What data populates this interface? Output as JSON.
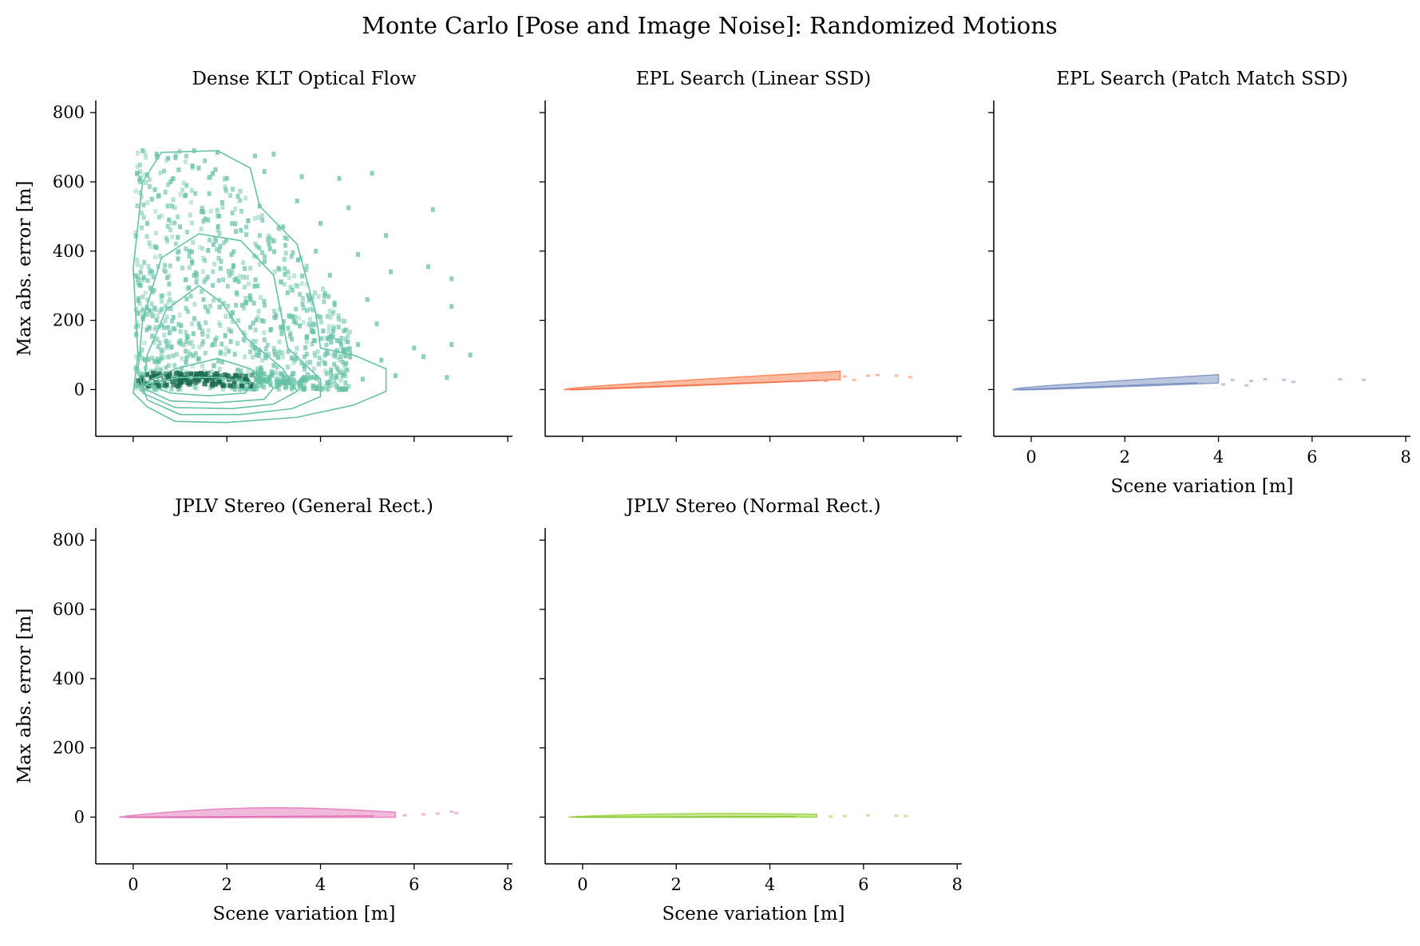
{
  "figure": {
    "title": "Monte Carlo [Pose and Image Noise]: Randomized Motions"
  },
  "chart_data": [
    {
      "type": "heatmap",
      "title": "Dense KLT Optical Flow",
      "xlabel": "",
      "ylabel": "Max abs. error [m]",
      "xlim": [
        -0.8,
        8.1
      ],
      "ylim": [
        -135,
        835
      ],
      "xticks": [
        0,
        2,
        4,
        6,
        8
      ],
      "yticks": [
        0,
        200,
        400,
        600,
        800
      ],
      "x_tick_labels_visible": false,
      "color": "#66c2a5",
      "dark_color": "#1b6b50",
      "scatter_points": [
        [
          0.2,
          690
        ],
        [
          0.5,
          680
        ],
        [
          0.9,
          670
        ],
        [
          1.3,
          690
        ],
        [
          1.8,
          685
        ],
        [
          2.6,
          675
        ],
        [
          3.0,
          680
        ],
        [
          0.3,
          620
        ],
        [
          0.8,
          600
        ],
        [
          1.4,
          640
        ],
        [
          2.0,
          610
        ],
        [
          2.8,
          630
        ],
        [
          3.6,
          615
        ],
        [
          4.4,
          610
        ],
        [
          5.1,
          625
        ],
        [
          0.4,
          550
        ],
        [
          1.1,
          560
        ],
        [
          1.9,
          540
        ],
        [
          2.7,
          530
        ],
        [
          3.5,
          545
        ],
        [
          4.6,
          525
        ],
        [
          0.3,
          480
        ],
        [
          1.0,
          470
        ],
        [
          1.6,
          490
        ],
        [
          2.3,
          460
        ],
        [
          3.2,
          470
        ],
        [
          4.0,
          480
        ],
        [
          5.4,
          445
        ],
        [
          6.4,
          520
        ],
        [
          0.5,
          410
        ],
        [
          1.2,
          400
        ],
        [
          2.1,
          390
        ],
        [
          2.9,
          420
        ],
        [
          3.9,
          400
        ],
        [
          4.8,
          390
        ],
        [
          0.4,
          340
        ],
        [
          1.3,
          330
        ],
        [
          2.2,
          320
        ],
        [
          3.1,
          350
        ],
        [
          4.2,
          330
        ],
        [
          5.5,
          340
        ],
        [
          6.3,
          355
        ],
        [
          6.8,
          320
        ],
        [
          0.6,
          270
        ],
        [
          1.5,
          260
        ],
        [
          2.4,
          250
        ],
        [
          3.3,
          280
        ],
        [
          4.3,
          250
        ],
        [
          5.0,
          260
        ],
        [
          0.5,
          200
        ],
        [
          1.4,
          190
        ],
        [
          2.5,
          180
        ],
        [
          3.4,
          210
        ],
        [
          4.5,
          170
        ],
        [
          5.2,
          190
        ],
        [
          6.8,
          240
        ],
        [
          0.7,
          140
        ],
        [
          1.7,
          130
        ],
        [
          2.6,
          120
        ],
        [
          3.7,
          150
        ],
        [
          4.8,
          130
        ],
        [
          6.0,
          120
        ],
        [
          6.8,
          130
        ],
        [
          0.6,
          90
        ],
        [
          1.9,
          80
        ],
        [
          3.0,
          70
        ],
        [
          4.1,
          100
        ],
        [
          5.3,
          85
        ],
        [
          6.2,
          95
        ],
        [
          7.2,
          100
        ],
        [
          0.8,
          40
        ],
        [
          1.6,
          30
        ],
        [
          2.7,
          25
        ],
        [
          3.8,
          35
        ],
        [
          4.9,
          30
        ],
        [
          5.6,
          40
        ],
        [
          6.7,
          35
        ]
      ],
      "contours": [
        {
          "level": "outer",
          "points": [
            [
              0.3,
              -50
            ],
            [
              0.9,
              -92
            ],
            [
              2.0,
              -95
            ],
            [
              3.5,
              -80
            ],
            [
              4.7,
              -45
            ],
            [
              5.4,
              -5
            ],
            [
              5.4,
              60
            ],
            [
              4.7,
              100
            ],
            [
              4.0,
              120
            ],
            [
              3.9,
              220
            ],
            [
              3.5,
              420
            ],
            [
              2.7,
              530
            ],
            [
              2.5,
              640
            ],
            [
              1.8,
              690
            ],
            [
              0.6,
              685
            ],
            [
              0.2,
              600
            ],
            [
              0.0,
              350
            ],
            [
              0.1,
              100
            ],
            [
              0.0,
              -10
            ],
            [
              0.3,
              -50
            ]
          ]
        },
        {
          "level": "2",
          "points": [
            [
              0.3,
              -30
            ],
            [
              1.0,
              -72
            ],
            [
              2.3,
              -72
            ],
            [
              3.4,
              -55
            ],
            [
              4.0,
              -20
            ],
            [
              4.0,
              30
            ],
            [
              3.3,
              120
            ],
            [
              3.0,
              330
            ],
            [
              2.3,
              430
            ],
            [
              1.4,
              450
            ],
            [
              0.6,
              380
            ],
            [
              0.2,
              200
            ],
            [
              0.1,
              50
            ],
            [
              0.3,
              -30
            ]
          ]
        },
        {
          "level": "3",
          "points": [
            [
              0.2,
              -10
            ],
            [
              0.9,
              -52
            ],
            [
              2.1,
              -55
            ],
            [
              3.0,
              -42
            ],
            [
              3.5,
              -5
            ],
            [
              3.2,
              60
            ],
            [
              2.4,
              150
            ],
            [
              1.9,
              250
            ],
            [
              1.4,
              300
            ],
            [
              0.7,
              230
            ],
            [
              0.3,
              100
            ],
            [
              0.2,
              -10
            ]
          ]
        },
        {
          "level": "4",
          "points": [
            [
              0.2,
              5
            ],
            [
              0.8,
              -33
            ],
            [
              1.8,
              -38
            ],
            [
              2.8,
              -28
            ],
            [
              3.0,
              5
            ],
            [
              2.5,
              60
            ],
            [
              1.8,
              90
            ],
            [
              0.9,
              60
            ],
            [
              0.4,
              30
            ],
            [
              0.2,
              5
            ]
          ]
        },
        {
          "level": "5",
          "points": [
            [
              0.25,
              15
            ],
            [
              0.8,
              -10
            ],
            [
              1.6,
              -18
            ],
            [
              2.4,
              -10
            ],
            [
              2.5,
              20
            ],
            [
              1.8,
              35
            ],
            [
              1.0,
              35
            ],
            [
              0.25,
              15
            ]
          ]
        }
      ]
    },
    {
      "type": "heatmap",
      "title": "EPL Search (Linear SSD)",
      "xlabel": "",
      "ylabel": "",
      "xlim": [
        -0.8,
        8.1
      ],
      "ylim": [
        -135,
        835
      ],
      "xticks": [
        0,
        2,
        4,
        6,
        8
      ],
      "yticks": [
        0,
        200,
        400,
        600,
        800
      ],
      "x_tick_labels_visible": false,
      "color": "#fc8d62",
      "dark_color": "#e8663e",
      "band": {
        "x_start": -0.4,
        "x_end": 5.5,
        "y_end": 38,
        "thickness_end": 30
      },
      "scatter_points": [
        [
          5.6,
          38
        ],
        [
          6.1,
          40
        ],
        [
          6.3,
          42
        ],
        [
          6.7,
          40
        ],
        [
          7.0,
          36
        ],
        [
          5.2,
          25
        ],
        [
          5.8,
          28
        ]
      ]
    },
    {
      "type": "heatmap",
      "title": "EPL Search (Patch Match SSD)",
      "xlabel": "Scene variation [m]",
      "ylabel": "",
      "xlim": [
        -0.8,
        8.1
      ],
      "ylim": [
        -135,
        835
      ],
      "xticks": [
        0,
        2,
        4,
        6,
        8
      ],
      "yticks": [
        0,
        200,
        400,
        600,
        800
      ],
      "x_tick_labels_visible": true,
      "color": "#8da0cb",
      "dark_color": "#6c82b8",
      "band": {
        "x_start": -0.4,
        "x_end": 4.0,
        "y_end": 28,
        "thickness_end": 30
      },
      "scatter_points": [
        [
          4.3,
          28
        ],
        [
          4.7,
          25
        ],
        [
          5.0,
          30
        ],
        [
          5.4,
          28
        ],
        [
          5.6,
          22
        ],
        [
          6.6,
          30
        ],
        [
          7.1,
          28
        ],
        [
          4.1,
          15
        ],
        [
          4.6,
          12
        ]
      ]
    },
    {
      "type": "heatmap",
      "title": "JPLV Stereo (General Rect.)",
      "xlabel": "Scene variation [m]",
      "ylabel": "Max abs. error [m]",
      "xlim": [
        -0.8,
        8.1
      ],
      "ylim": [
        -135,
        835
      ],
      "xticks": [
        0,
        2,
        4,
        6,
        8
      ],
      "yticks": [
        0,
        200,
        400,
        600,
        800
      ],
      "x_tick_labels_visible": true,
      "color": "#e78ac3",
      "dark_color": "#d9619f",
      "band": {
        "x_start": -0.3,
        "x_end": 5.6,
        "y_end": 5,
        "thickness_end": 18,
        "hump": 22
      },
      "scatter_points": [
        [
          6.2,
          8
        ],
        [
          6.5,
          10
        ],
        [
          6.8,
          16
        ],
        [
          6.9,
          12
        ],
        [
          5.8,
          5
        ]
      ]
    },
    {
      "type": "heatmap",
      "title": "JPLV Stereo (Normal Rect.)",
      "xlabel": "Scene variation [m]",
      "ylabel": "",
      "xlim": [
        -0.8,
        8.1
      ],
      "ylim": [
        -135,
        835
      ],
      "xticks": [
        0,
        2,
        4,
        6,
        8
      ],
      "yticks": [
        0,
        200,
        400,
        600,
        800
      ],
      "x_tick_labels_visible": true,
      "color": "#a6d854",
      "dark_color": "#88bb33",
      "band": {
        "x_start": -0.3,
        "x_end": 5.0,
        "y_end": 3,
        "thickness_end": 10,
        "hump": 6
      },
      "scatter_points": [
        [
          5.3,
          2
        ],
        [
          5.6,
          3
        ],
        [
          6.1,
          5
        ],
        [
          6.7,
          4
        ],
        [
          6.9,
          3
        ]
      ]
    }
  ]
}
